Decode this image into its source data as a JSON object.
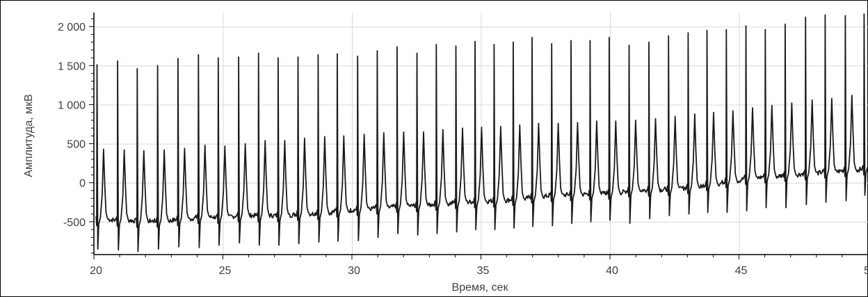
{
  "chart_data": {
    "type": "line",
    "xlabel": "Время, сек",
    "ylabel": "Амплитуда, мкВ",
    "xlim": [
      20,
      50
    ],
    "ylim": [
      -920,
      2180
    ],
    "x_ticks": [
      20,
      25,
      30,
      35,
      40,
      45,
      50
    ],
    "x_tick_labels": [
      "20",
      "25",
      "30",
      "35",
      "40",
      "45",
      "50"
    ],
    "y_ticks": [
      -500,
      0,
      500,
      1000,
      1500,
      2000
    ],
    "y_tick_labels": [
      "-500",
      "0",
      "500",
      "1 000",
      "1 500",
      "2 000"
    ],
    "grid": true,
    "colors": {
      "line": "#1a1a1a",
      "grid": "#d8d8d8",
      "axis": "#000000"
    },
    "series": [
      {
        "beat_times": [
          20.12,
          20.92,
          21.68,
          22.47,
          23.26,
          24.05,
          24.82,
          25.61,
          26.38,
          27.14,
          27.91,
          28.69,
          29.43,
          30.22,
          30.98,
          31.75,
          32.52,
          33.27,
          34.03,
          34.77,
          35.51,
          36.25,
          36.98,
          37.74,
          38.49,
          39.23,
          39.97,
          40.74,
          41.51,
          42.27,
          43.03,
          43.76,
          44.51,
          45.27,
          46.02,
          46.79,
          47.58,
          48.34,
          49.12,
          49.85
        ],
        "r_peak": [
          1510,
          1560,
          1460,
          1500,
          1590,
          1640,
          1600,
          1610,
          1660,
          1600,
          1610,
          1640,
          1650,
          1620,
          1690,
          1740,
          1660,
          1770,
          1750,
          1810,
          1770,
          1800,
          1860,
          1780,
          1820,
          1820,
          1860,
          1760,
          1800,
          1880,
          1920,
          1950,
          1960,
          2010,
          1960,
          2030,
          2120,
          2150,
          2140,
          2160
        ],
        "s_trough": [
          -850,
          -860,
          -880,
          -850,
          -820,
          -830,
          -800,
          -770,
          -800,
          -800,
          -780,
          -760,
          -750,
          -740,
          -700,
          -650,
          -670,
          -650,
          -630,
          -600,
          -600,
          -580,
          -560,
          -550,
          -520,
          -500,
          -480,
          -520,
          -460,
          -420,
          -400,
          -380,
          -380,
          -360,
          -320,
          -320,
          -280,
          -250,
          -230,
          -160
        ],
        "t_peak": [
          430,
          420,
          410,
          420,
          440,
          480,
          470,
          500,
          540,
          540,
          570,
          590,
          600,
          620,
          640,
          650,
          650,
          680,
          700,
          710,
          720,
          740,
          760,
          760,
          770,
          790,
          790,
          800,
          820,
          850,
          880,
          900,
          920,
          960,
          990,
          1020,
          1060,
          1080,
          1120,
          420
        ],
        "baseline": [
          -470,
          -480,
          -490,
          -490,
          -470,
          -440,
          -440,
          -420,
          -420,
          -420,
          -400,
          -390,
          -360,
          -340,
          -320,
          -300,
          -290,
          -270,
          -250,
          -240,
          -230,
          -210,
          -180,
          -160,
          -150,
          -140,
          -130,
          -100,
          -90,
          -80,
          -60,
          -20,
          20,
          60,
          80,
          100,
          120,
          140,
          160,
          180
        ]
      }
    ]
  }
}
